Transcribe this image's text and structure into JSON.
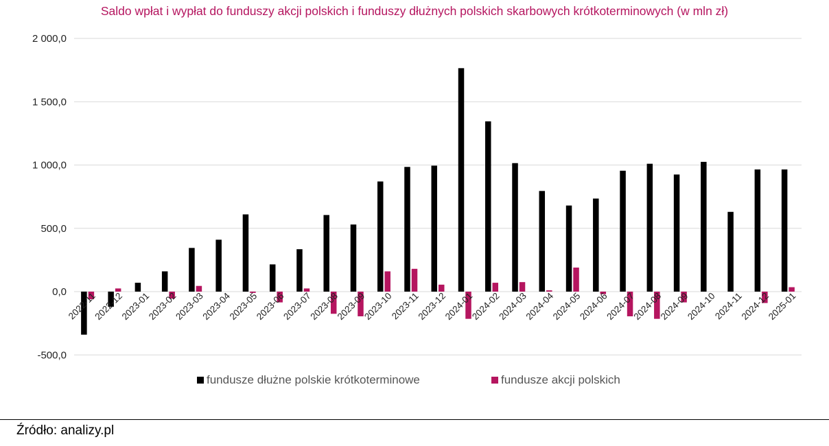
{
  "source_label": "Źródło: analizy.pl",
  "colors": {
    "series1": "#000000",
    "series2": "#b5155f",
    "grid": "#d9d9d9",
    "title": "#b5155f"
  },
  "chart_data": {
    "type": "bar",
    "title": "Saldo wpłat i wypłat do funduszy akcji polskich i funduszy dłużnych polskich skarbowych krótkoterminowych (w mln zł)",
    "xlabel": "",
    "ylabel": "",
    "ylim": [
      -500,
      2000
    ],
    "yticks": [
      -500,
      0,
      500,
      1000,
      1500,
      2000
    ],
    "ytick_labels": [
      "-500,0",
      "0,0",
      "500,0",
      "1 000,0",
      "1 500,0",
      "2 000,0"
    ],
    "grid": true,
    "legend_position": "bottom",
    "categories": [
      "2022-11",
      "2022-12",
      "2023-01",
      "2023-02",
      "2023-03",
      "2023-04",
      "2023-05",
      "2023-06",
      "2023-07",
      "2023-08",
      "2023-09",
      "2023-10",
      "2023-11",
      "2023-12",
      "2024-01",
      "2024-02",
      "2024-03",
      "2024-04",
      "2024-05",
      "2024-06",
      "2024-07",
      "2024-08",
      "2024-09",
      "2024-10",
      "2024-11",
      "2024-12",
      "2025-01"
    ],
    "series": [
      {
        "name": "fundusze dłużne polskie krótkoterminowe",
        "values": [
          -340,
          -120,
          70,
          160,
          345,
          410,
          610,
          215,
          335,
          605,
          530,
          870,
          985,
          995,
          1765,
          1345,
          1015,
          795,
          680,
          735,
          955,
          1010,
          925,
          1025,
          630,
          965,
          965
        ]
      },
      {
        "name": "fundusze akcji polskich",
        "values": [
          -60,
          25,
          0,
          -55,
          45,
          0,
          -10,
          -85,
          25,
          -175,
          -195,
          160,
          180,
          55,
          -215,
          70,
          75,
          10,
          190,
          -20,
          -195,
          -215,
          -85,
          0,
          0,
          -90,
          35
        ]
      }
    ]
  }
}
